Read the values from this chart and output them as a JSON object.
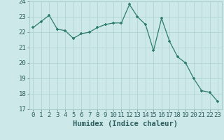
{
  "xlabel": "Humidex (Indice chaleur)",
  "x_values": [
    0,
    1,
    2,
    3,
    4,
    5,
    6,
    7,
    8,
    9,
    10,
    11,
    12,
    13,
    14,
    15,
    16,
    17,
    18,
    19,
    20,
    21,
    22,
    23
  ],
  "y_values": [
    22.3,
    22.7,
    23.1,
    22.2,
    22.1,
    21.6,
    21.9,
    22.0,
    22.3,
    22.5,
    22.6,
    22.6,
    23.8,
    23.0,
    22.5,
    20.8,
    22.9,
    21.4,
    20.4,
    20.0,
    19.0,
    18.2,
    18.1,
    17.5
  ],
  "line_color": "#2e7d6e",
  "marker_color": "#2e7d6e",
  "bg_color": "#cce8e8",
  "grid_color": "#aacfcf",
  "ylim": [
    17,
    24
  ],
  "yticks": [
    17,
    18,
    19,
    20,
    21,
    22,
    23,
    24
  ],
  "xlim": [
    -0.5,
    23.5
  ],
  "xticks": [
    0,
    1,
    2,
    3,
    4,
    5,
    6,
    7,
    8,
    9,
    10,
    11,
    12,
    13,
    14,
    15,
    16,
    17,
    18,
    19,
    20,
    21,
    22,
    23
  ],
  "xlabel_fontsize": 7.5,
  "tick_fontsize": 6.5
}
